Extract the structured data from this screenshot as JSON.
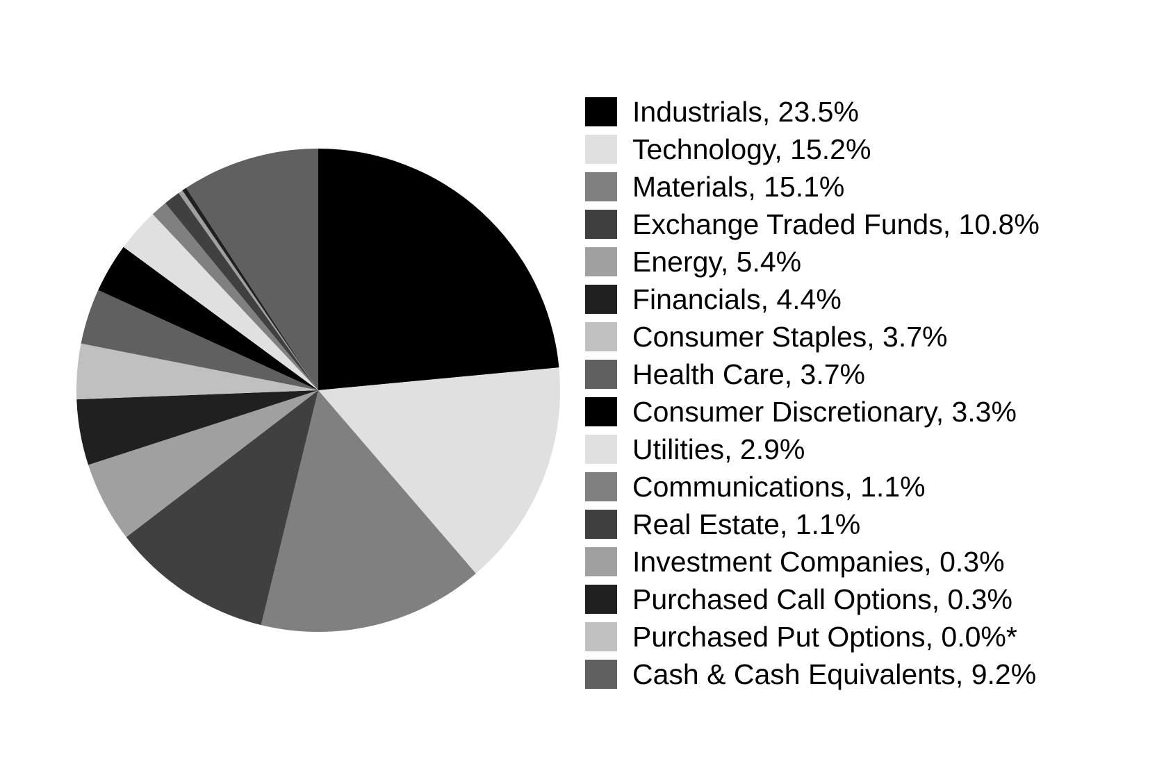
{
  "chart_data": {
    "type": "pie",
    "start_angle": "12 o'clock",
    "direction": "clockwise",
    "legend_placement": "right",
    "slices": [
      {
        "name": "Industrials",
        "value": 23.5,
        "label": "Industrials, 23.5%",
        "color": "#000000"
      },
      {
        "name": "Technology",
        "value": 15.2,
        "label": "Technology, 15.2%",
        "color": "#e0e0e0"
      },
      {
        "name": "Materials",
        "value": 15.1,
        "label": "Materials, 15.1%",
        "color": "#808080"
      },
      {
        "name": "Exchange Traded Funds",
        "value": 10.8,
        "label": "Exchange Traded Funds, 10.8%",
        "color": "#404040"
      },
      {
        "name": "Energy",
        "value": 5.4,
        "label": "Energy, 5.4%",
        "color": "#a0a0a0"
      },
      {
        "name": "Financials",
        "value": 4.4,
        "label": "Financials, 4.4%",
        "color": "#202020"
      },
      {
        "name": "Consumer Staples",
        "value": 3.7,
        "label": "Consumer Staples, 3.7%",
        "color": "#c0c0c0"
      },
      {
        "name": "Health Care",
        "value": 3.7,
        "label": "Health Care, 3.7%",
        "color": "#606060"
      },
      {
        "name": "Consumer Discretionary",
        "value": 3.3,
        "label": "Consumer Discretionary, 3.3%",
        "color": "#000000"
      },
      {
        "name": "Utilities",
        "value": 2.9,
        "label": "Utilities, 2.9%",
        "color": "#e0e0e0"
      },
      {
        "name": "Communications",
        "value": 1.1,
        "label": "Communications, 1.1%",
        "color": "#808080"
      },
      {
        "name": "Real Estate",
        "value": 1.1,
        "label": "Real Estate, 1.1%",
        "color": "#404040"
      },
      {
        "name": "Investment Companies",
        "value": 0.3,
        "label": "Investment Companies, 0.3%",
        "color": "#a0a0a0"
      },
      {
        "name": "Purchased Call Options",
        "value": 0.3,
        "label": "Purchased Call Options, 0.3%",
        "color": "#202020"
      },
      {
        "name": "Purchased Put Options",
        "value": 0.0,
        "label": "Purchased Put Options, 0.0%*",
        "color": "#c0c0c0"
      },
      {
        "name": "Cash & Cash Equivalents",
        "value": 9.2,
        "label": "Cash & Cash Equivalents, 9.2%",
        "color": "#606060"
      }
    ]
  }
}
